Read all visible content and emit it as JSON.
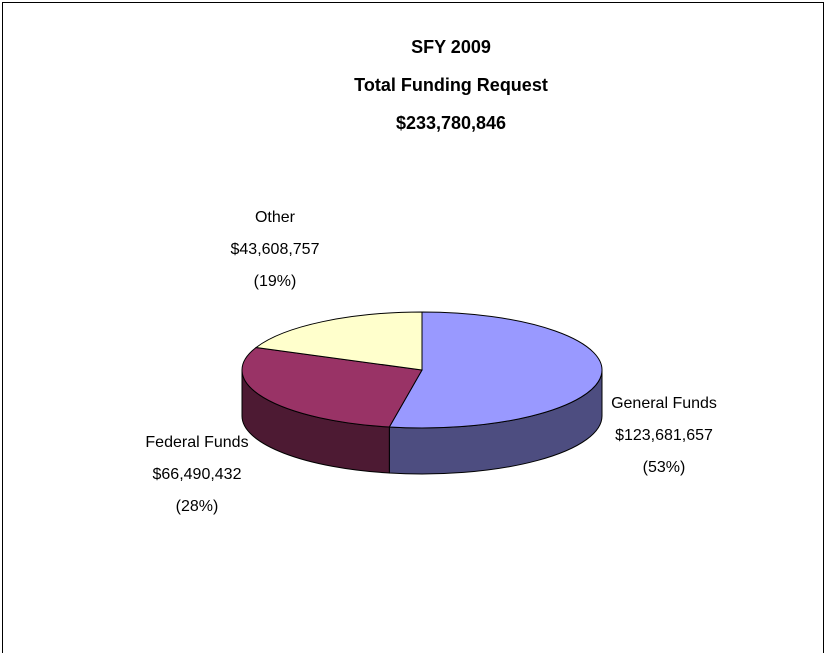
{
  "chart_data": {
    "type": "pie",
    "title": [
      "SFY 2009",
      "Total Funding Request",
      "$233,780,846"
    ],
    "categories": [
      "General Funds",
      "Federal Funds",
      "Other"
    ],
    "values": [
      123681657,
      66490432,
      43608757
    ],
    "value_labels": [
      "$123,681,657",
      "$66,490,432",
      "$43,608,757"
    ],
    "percent_labels": [
      "(53%)",
      "(28%)",
      "(19%)"
    ],
    "colors": [
      "#9999ff",
      "#993366",
      "#ffffcc"
    ]
  }
}
